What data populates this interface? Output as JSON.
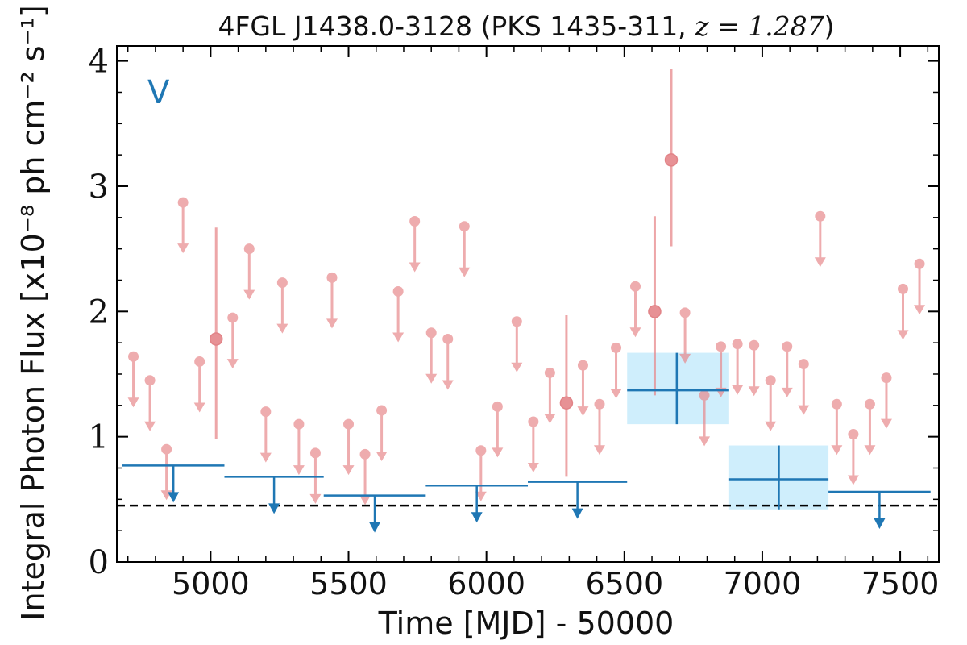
{
  "chart_data": {
    "type": "scatter",
    "title": "4FGL J1438.0-3128 (PKS 1435-311, z = 1.287)",
    "title_parts": {
      "text": "4FGL J1438.0-3128 (PKS 1435-311, ",
      "math": "z = 1.287",
      "close": ")"
    },
    "xlabel": "Time [MJD] - 50000",
    "ylabel": "Integral Photon Flux [x10⁻⁸ ph cm⁻² s⁻¹]",
    "panel_label": "V",
    "xlim": [
      4660,
      7640
    ],
    "ylim": [
      0,
      4.12
    ],
    "x_ticks": [
      "5000",
      "5500",
      "6000",
      "6500",
      "7000",
      "7500"
    ],
    "x_tick_values": [
      5000,
      5500,
      6000,
      6500,
      7000,
      7500
    ],
    "y_ticks": [
      "0",
      "1",
      "2",
      "3",
      "4"
    ],
    "y_tick_values": [
      0,
      1,
      2,
      3,
      4
    ],
    "reference_line": {
      "y": 0.45,
      "style": "dashed",
      "color": "#000000"
    },
    "colors": {
      "fine": "#e8898c",
      "coarse": "#1f77b4",
      "band": "#cfeefc"
    },
    "series": [
      {
        "type": "upper_limits",
        "color": "#e8898c",
        "x": [
          4720,
          4780,
          4840,
          4900,
          4960,
          5080,
          5140,
          5200,
          5260,
          5320,
          5380,
          5440,
          5500,
          5560,
          5620,
          5680,
          5740,
          5800,
          5860,
          5920,
          5980,
          6040,
          6110,
          6170,
          6230,
          6350,
          6410,
          6470,
          6540,
          6720,
          6790,
          6850,
          6910,
          6970,
          7030,
          7090,
          7150,
          7210,
          7270,
          7330,
          7390,
          7450,
          7510,
          7570
        ],
        "y": [
          1.64,
          1.45,
          0.9,
          2.87,
          1.6,
          1.95,
          2.5,
          1.2,
          2.23,
          1.1,
          0.87,
          2.27,
          1.1,
          0.86,
          1.21,
          2.16,
          2.72,
          1.83,
          1.78,
          2.68,
          0.89,
          1.24,
          1.92,
          1.12,
          1.51,
          1.57,
          1.26,
          1.71,
          2.2,
          1.99,
          1.33,
          1.72,
          1.74,
          1.73,
          1.45,
          1.72,
          1.58,
          2.76,
          1.26,
          1.02,
          1.26,
          1.47,
          2.18,
          2.38
        ]
      },
      {
        "type": "detections",
        "color": "#e8898c",
        "x": [
          5020,
          6290,
          6610,
          6670
        ],
        "y": [
          1.78,
          1.27,
          2.0,
          3.21
        ],
        "y_low": [
          0.98,
          0.68,
          1.33,
          2.52
        ],
        "y_high": [
          2.67,
          1.97,
          2.76,
          3.94
        ]
      },
      {
        "type": "binned_upper_limits",
        "color": "#1f77b4",
        "x_start": [
          4680,
          5050,
          5410,
          5780,
          6150,
          7240
        ],
        "x_end": [
          5050,
          5410,
          5780,
          6150,
          6510,
          7610
        ],
        "y": [
          0.77,
          0.68,
          0.53,
          0.61,
          0.64,
          0.56
        ]
      },
      {
        "type": "binned_detections",
        "color": "#1f77b4",
        "x": [
          6690,
          7060
        ],
        "x_start": [
          6510,
          6880
        ],
        "x_end": [
          6880,
          7240
        ],
        "y": [
          1.37,
          0.66
        ],
        "y_low": [
          1.1,
          0.42
        ],
        "y_high": [
          1.67,
          0.93
        ]
      }
    ]
  }
}
